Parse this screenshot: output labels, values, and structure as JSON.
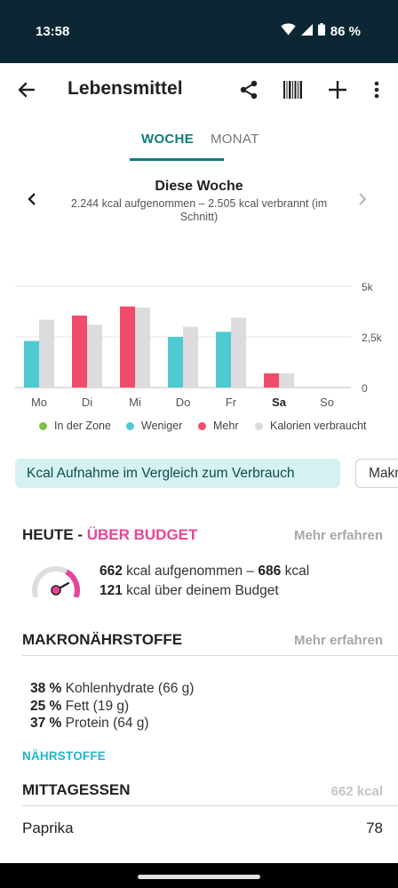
{
  "status_bar": {
    "time": "13:58",
    "battery": "86 %"
  },
  "app_bar": {
    "title": "Lebensmittel",
    "icons": [
      "back-arrow-icon",
      "share-icon",
      "barcode-icon",
      "plus-icon",
      "more-vert-icon"
    ]
  },
  "tabs": [
    {
      "label": "WOCHE",
      "active": true
    },
    {
      "label": "MONAT",
      "active": false
    }
  ],
  "week": {
    "title": "Diese Woche",
    "subtitle_line1": "2.244 kcal aufgenommen – 2.505 kcal verbrannt (im",
    "subtitle_line2": "Schnitt)"
  },
  "chart_data": {
    "type": "bar",
    "categories": [
      "Mo",
      "Di",
      "Mi",
      "Do",
      "Fr",
      "Sa",
      "So"
    ],
    "highlighted_category": "Sa",
    "series": [
      {
        "name": "Aufgenommen",
        "values": [
          2300,
          3550,
          4000,
          2500,
          2750,
          700,
          0
        ],
        "status": [
          "Weniger",
          "Mehr",
          "Mehr",
          "Weniger",
          "Weniger",
          "Mehr",
          ""
        ]
      },
      {
        "name": "Kalorien verbraucht",
        "values": [
          3350,
          3100,
          3950,
          3000,
          3450,
          700,
          0
        ]
      }
    ],
    "yticks": [
      "5k",
      "2,5k",
      "0"
    ],
    "ylim": [
      0,
      5000
    ],
    "grid": true,
    "legend_position": "bottom",
    "legend": [
      {
        "label": "In der Zone",
        "color": "#7cc142"
      },
      {
        "label": "Weniger",
        "color": "#4fcad1"
      },
      {
        "label": "Mehr",
        "color": "#f24c6b"
      },
      {
        "label": "Kalorien verbraucht",
        "color": "#dcdcdf"
      }
    ]
  },
  "chips": [
    {
      "label": "Kcal Aufnahme im Vergleich zum Verbrauch",
      "active": true
    },
    {
      "label": "Makronährstoffe",
      "active": false
    }
  ],
  "today": {
    "heading_prefix": "HEUTE - ",
    "heading_status": "ÜBER BUDGET",
    "link": "Mehr erfahren",
    "line1_num1": "662",
    "line1_text1": " kcal aufgenommen – ",
    "line1_num2": "686",
    "line1_text2": " kcal",
    "line2_num": "121",
    "line2_text": " kcal über deinem Budget",
    "gauge_fraction": 0.96
  },
  "macros": {
    "heading": "MAKRONÄHRSTOFFE",
    "link": "Mehr erfahren",
    "items": [
      {
        "percent": "38 %",
        "label": " Kohlenhydrate (66 g)"
      },
      {
        "percent": "25 %",
        "label": " Fett (19 g)"
      },
      {
        "percent": "37 %",
        "label": " Protein (64 g)"
      }
    ]
  },
  "nutrients_link": "NÄHRSTOFFE",
  "meals": {
    "heading": "MITTAGESSEN",
    "total": "662 kcal",
    "items": [
      {
        "name": "Paprika",
        "kcal": "78"
      }
    ]
  },
  "colors": {
    "accent": "#0f7c7c",
    "over_budget": "#e8439a",
    "status_bar": "#0a2733"
  }
}
